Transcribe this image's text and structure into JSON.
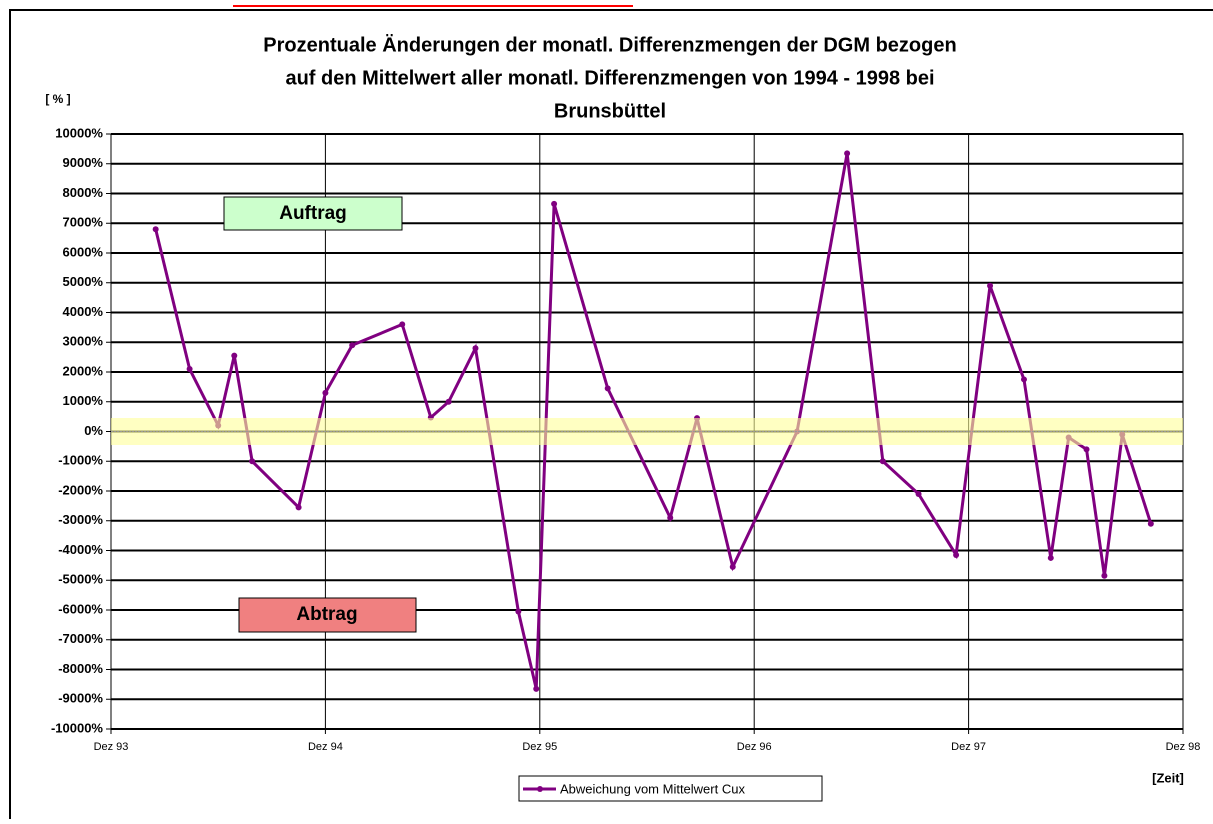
{
  "chart_data": {
    "type": "line",
    "title": [
      "Prozentuale Änderungen der monatl. Differenzmengen der DGM bezogen",
      "auf den Mittelwert aller monatl. Differenzmengen von 1994 - 1998  bei",
      "Brunsbüttel"
    ],
    "y_label": "[ % ]",
    "x_label": "[Zeit]",
    "annotations": [
      "Auftrag",
      "Abtrag"
    ],
    "xlim": [
      0,
      60
    ],
    "xticks": [
      {
        "value": 0,
        "label": "Dez 93"
      },
      {
        "value": 12,
        "label": "Dez 94"
      },
      {
        "value": 24,
        "label": "Dez 95"
      },
      {
        "value": 36,
        "label": "Dez 96"
      },
      {
        "value": 48,
        "label": "Dez 97"
      },
      {
        "value": 60,
        "label": "Dez 98"
      }
    ],
    "ylim": [
      -10000,
      10000
    ],
    "yticks": [
      {
        "value": 10000,
        "label": "10000%"
      },
      {
        "value": 9000,
        "label": "9000%"
      },
      {
        "value": 8000,
        "label": "8000%"
      },
      {
        "value": 7000,
        "label": "7000%"
      },
      {
        "value": 6000,
        "label": "6000%"
      },
      {
        "value": 5000,
        "label": "5000%"
      },
      {
        "value": 4000,
        "label": "4000%"
      },
      {
        "value": 3000,
        "label": "3000%"
      },
      {
        "value": 2000,
        "label": "2000%"
      },
      {
        "value": 1000,
        "label": "1000%"
      },
      {
        "value": 0,
        "label": "0%"
      },
      {
        "value": -1000,
        "label": "-1000%"
      },
      {
        "value": -2000,
        "label": "-2000%"
      },
      {
        "value": -3000,
        "label": "-3000%"
      },
      {
        "value": -4000,
        "label": "-4000%"
      },
      {
        "value": -5000,
        "label": "-5000%"
      },
      {
        "value": -6000,
        "label": "-6000%"
      },
      {
        "value": -7000,
        "label": "-7000%"
      },
      {
        "value": -8000,
        "label": "-8000%"
      },
      {
        "value": -9000,
        "label": "-9000%"
      },
      {
        "value": -10000,
        "label": "-10000%"
      }
    ],
    "grid": true,
    "x": [
      2.5,
      4.4,
      6.0,
      6.9,
      7.9,
      10.5,
      12.0,
      13.5,
      16.3,
      17.9,
      18.9,
      20.4,
      22.8,
      23.8,
      24.8,
      27.8,
      31.3,
      32.8,
      34.8,
      38.4,
      41.2,
      43.2,
      45.2,
      47.3,
      49.2,
      51.1,
      52.6,
      53.6,
      54.6,
      55.6,
      56.6,
      58.2
    ],
    "series": [
      {
        "name": "Abweichung vom Mittelwert Cux",
        "color": "#800080",
        "values": [
          6800,
          2100,
          200,
          2550,
          -1000,
          -2550,
          1300,
          2900,
          3600,
          470,
          1000,
          2800,
          -6050,
          -8650,
          7650,
          1450,
          -2900,
          450,
          -4550,
          0,
          9350,
          -1000,
          -2100,
          -4150,
          4900,
          1750,
          -4250,
          -200,
          -600,
          -4850,
          -100,
          -3100
        ]
      }
    ]
  }
}
